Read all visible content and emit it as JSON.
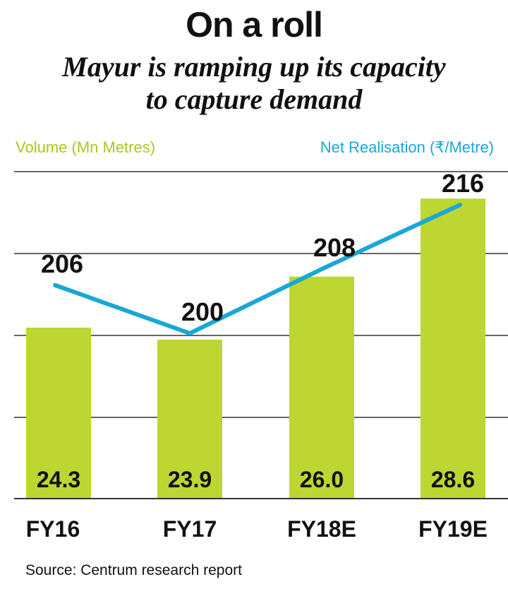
{
  "header": {
    "title": "On a roll",
    "subtitle_line1": "Mayur is ramping up its capacity",
    "subtitle_line2": "to capture demand"
  },
  "source": "Source: Centrum research report",
  "colors": {
    "bar": "#bdd631",
    "line": "#1aa7d6",
    "grid": "#333333",
    "text": "#111111"
  },
  "chart_data": {
    "type": "bar",
    "categories": [
      "FY16",
      "FY17",
      "FY18E",
      "FY19E"
    ],
    "series": [
      {
        "name": "Volume (Mn Metres)",
        "type": "bar",
        "values": [
          24.3,
          23.9,
          26.0,
          28.6
        ]
      },
      {
        "name": "Net Realisation (₹/Metre)",
        "type": "line",
        "values": [
          206,
          200,
          208,
          216
        ]
      }
    ],
    "grid": true,
    "legend_placement": "top"
  }
}
